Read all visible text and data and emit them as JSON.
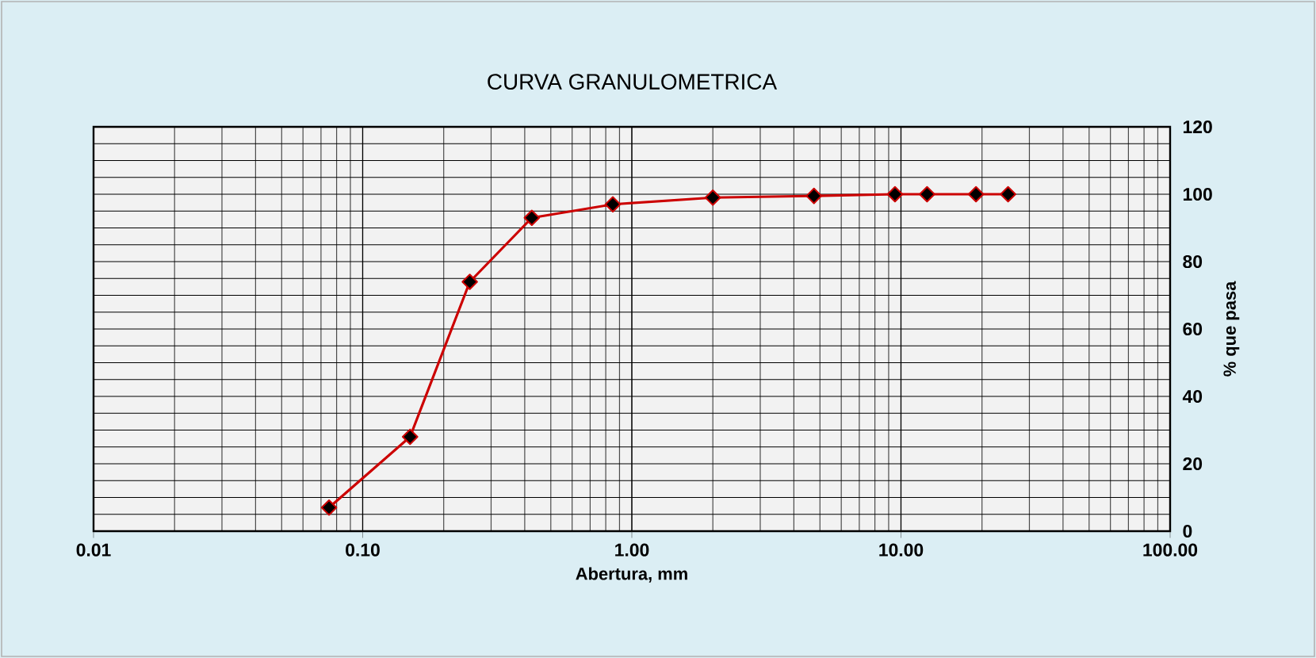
{
  "chart_data": {
    "type": "line",
    "title": "CURVA GRANULOMETRICA",
    "xlabel": "Abertura, mm",
    "ylabel": "% que pasa",
    "x": [
      0.075,
      0.15,
      0.25,
      0.425,
      0.85,
      2.0,
      4.75,
      9.5,
      12.5,
      19.0,
      25.0
    ],
    "series": [
      {
        "color": "#cc0000",
        "values": [
          7,
          28,
          74,
          93,
          97,
          99,
          99.5,
          100,
          100,
          100,
          100
        ]
      }
    ],
    "log": "x",
    "xlim": [
      0.01,
      100
    ],
    "ylim": [
      0,
      120
    ],
    "xticks": [
      {
        "value": 0.01,
        "label": "0.01"
      },
      {
        "value": 0.1,
        "label": "0.10"
      },
      {
        "value": 1,
        "label": "1.00"
      },
      {
        "value": 10,
        "label": "10.00"
      },
      {
        "value": 100,
        "label": "100.00"
      }
    ],
    "yticks": [
      0,
      {
        "value": 5,
        "label": null
      },
      {
        "value": 10,
        "label": null
      },
      {
        "value": 15,
        "label": null
      },
      20,
      {
        "value": 25,
        "label": null
      },
      {
        "value": 30,
        "label": null
      },
      {
        "value": 35,
        "label": null
      },
      40,
      {
        "value": 45,
        "label": null
      },
      {
        "value": 50,
        "label": null
      },
      {
        "value": 55,
        "label": null
      },
      60,
      {
        "value": 65,
        "label": null
      },
      {
        "value": 70,
        "label": null
      },
      {
        "value": 75,
        "label": null
      },
      80,
      {
        "value": 85,
        "label": null
      },
      {
        "value": 90,
        "label": null
      },
      {
        "value": 95,
        "label": null
      },
      100,
      {
        "value": 105,
        "label": null
      },
      {
        "value": 110,
        "label": null
      },
      {
        "value": 115,
        "label": null
      },
      120
    ],
    "grid": true,
    "marker": "diamond",
    "line_style": "solid"
  }
}
